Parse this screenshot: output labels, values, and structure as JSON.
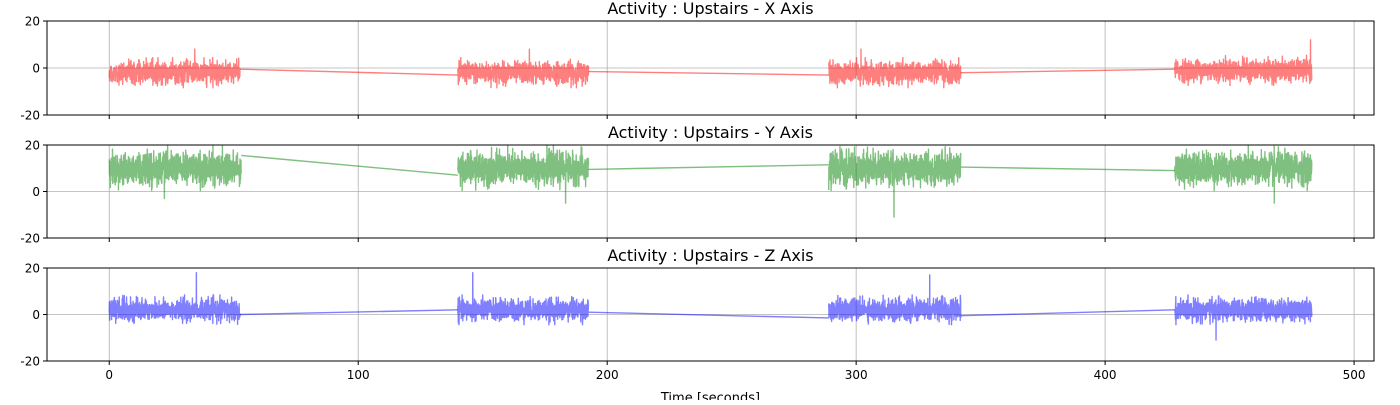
{
  "chart_data": [
    {
      "type": "line",
      "title": "Activity : Upstairs - X Axis",
      "xlabel": "",
      "ylabel": "",
      "xlim": [
        -25,
        508
      ],
      "ylim": [
        -20,
        20
      ],
      "xticks": [
        0,
        100,
        200,
        300,
        400,
        500
      ],
      "xtick_labels_shown": false,
      "yticks": [
        -20,
        0,
        20
      ],
      "grid": true,
      "color": "#ff0000",
      "opacity": 0.5,
      "segments": [
        {
          "x_start": 0,
          "x_end": 52.5,
          "center": -2,
          "spread": 4,
          "spike": 8
        },
        {
          "x_start": 140,
          "x_end": 192.5,
          "center": -2,
          "spread": 4,
          "spike": 8
        },
        {
          "x_start": 289,
          "x_end": 342,
          "center": -2,
          "spread": 4,
          "spike": 8
        },
        {
          "x_start": 428,
          "x_end": 483,
          "center": -1,
          "spread": 4,
          "spike": 12
        }
      ],
      "connectors": [
        [
          52.5,
          -0.5,
          140,
          -3
        ],
        [
          192.5,
          -1.5,
          289,
          -3
        ],
        [
          342,
          -2,
          428,
          -0.5
        ]
      ]
    },
    {
      "type": "line",
      "title": "Activity : Upstairs - Y Axis",
      "xlabel": "",
      "ylabel": "",
      "xlim": [
        -25,
        508
      ],
      "ylim": [
        -20,
        20
      ],
      "xticks": [
        0,
        100,
        200,
        300,
        400,
        500
      ],
      "xtick_labels_shown": false,
      "yticks": [
        -20,
        0,
        20
      ],
      "grid": true,
      "color": "#008000",
      "opacity": 0.5,
      "segments": [
        {
          "x_start": 0,
          "x_end": 53,
          "center": 10,
          "spread": 6,
          "spike": -3
        },
        {
          "x_start": 140,
          "x_end": 192.5,
          "center": 10,
          "spread": 6,
          "spike": -5
        },
        {
          "x_start": 289,
          "x_end": 342,
          "center": 10,
          "spread": 6,
          "spike": -11
        },
        {
          "x_start": 428,
          "x_end": 483,
          "center": 10,
          "spread": 6,
          "spike": -5
        }
      ],
      "connectors": [
        [
          53,
          15.5,
          140,
          7
        ],
        [
          192.5,
          9.5,
          289,
          11.5
        ],
        [
          342,
          10.5,
          428,
          9
        ]
      ]
    },
    {
      "type": "line",
      "title": "Activity : Upstairs - Z Axis",
      "xlabel": "Time [seconds]",
      "ylabel": "",
      "xlim": [
        -25,
        508
      ],
      "ylim": [
        -20,
        20
      ],
      "xticks": [
        0,
        100,
        200,
        300,
        400,
        500
      ],
      "xtick_labels_shown": true,
      "yticks": [
        -20,
        0,
        20
      ],
      "grid": true,
      "color": "#0000ff",
      "opacity": 0.5,
      "segments": [
        {
          "x_start": 0,
          "x_end": 52.5,
          "center": 2,
          "spread": 4,
          "spike": 18
        },
        {
          "x_start": 140,
          "x_end": 192.5,
          "center": 2,
          "spread": 4,
          "spike": 18
        },
        {
          "x_start": 289,
          "x_end": 342,
          "center": 2,
          "spread": 4,
          "spike": 17
        },
        {
          "x_start": 428,
          "x_end": 483,
          "center": 2,
          "spread": 4,
          "spike": -11
        }
      ],
      "connectors": [
        [
          52.5,
          0,
          140,
          2
        ],
        [
          192.5,
          1,
          289,
          -1.5
        ],
        [
          342,
          -0.5,
          428,
          2
        ]
      ]
    }
  ]
}
